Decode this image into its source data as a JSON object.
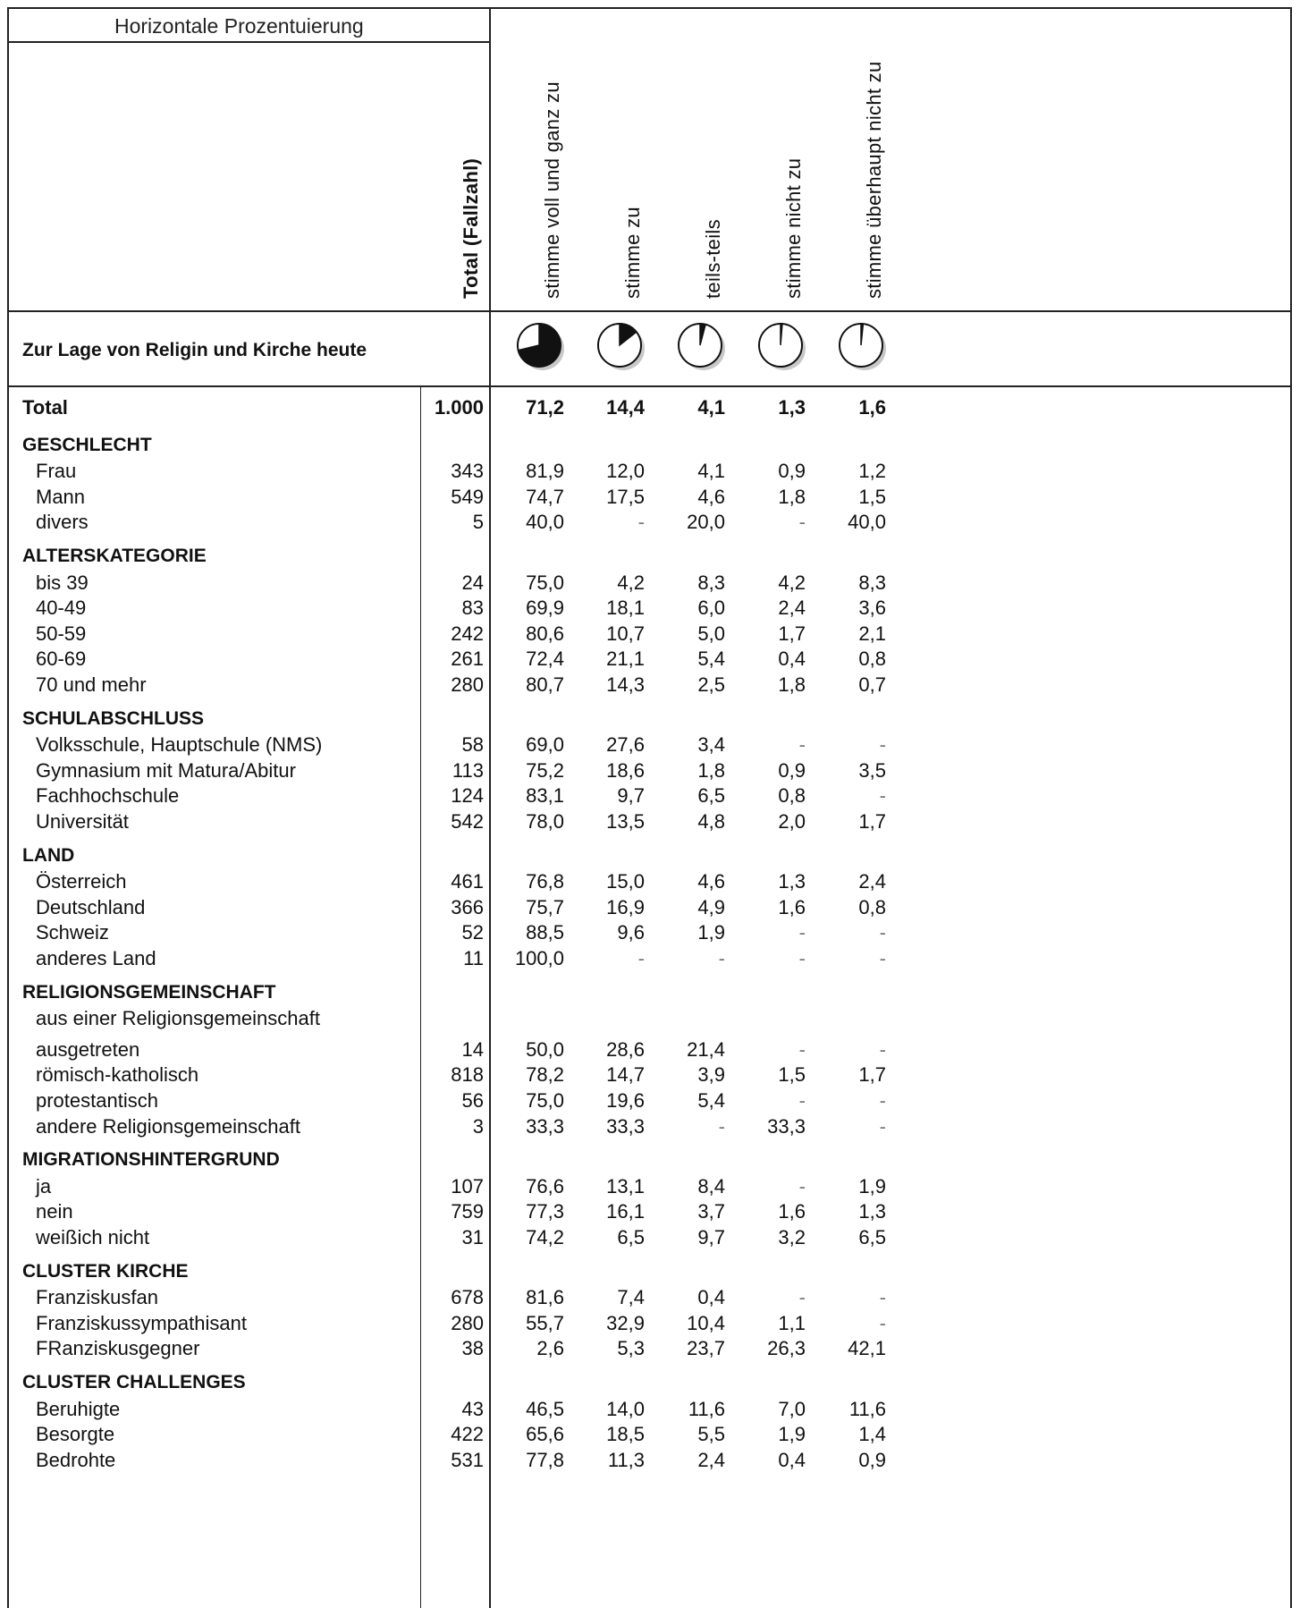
{
  "header": {
    "title": "Horizontale Prozentuierung",
    "columns": [
      "Total (Fallzahl)",
      "stimme voll und ganz zu",
      "stimme zu",
      "teils-teils",
      "stimme nicht zu",
      "stimme überhaupt nicht zu"
    ]
  },
  "question": "Zur Lage von Religin und Kirche heute",
  "pies": [
    71.2,
    14.4,
    4.1,
    1.3,
    1.6
  ],
  "rows": [
    {
      "type": "total",
      "label": "Total",
      "n": "1.000",
      "v": [
        "71,2",
        "14,4",
        "4,1",
        "1,3",
        "1,6"
      ]
    },
    {
      "type": "section",
      "label": "GESCHLECHT"
    },
    {
      "type": "row",
      "label": "Frau",
      "n": "343",
      "v": [
        "81,9",
        "12,0",
        "4,1",
        "0,9",
        "1,2"
      ]
    },
    {
      "type": "row",
      "label": "Mann",
      "n": "549",
      "v": [
        "74,7",
        "17,5",
        "4,6",
        "1,8",
        "1,5"
      ]
    },
    {
      "type": "row",
      "label": "divers",
      "n": "5",
      "v": [
        "40,0",
        "-",
        "20,0",
        "-",
        "40,0"
      ]
    },
    {
      "type": "section",
      "label": "ALTERSKATEGORIE"
    },
    {
      "type": "row",
      "label": "bis 39",
      "n": "24",
      "v": [
        "75,0",
        "4,2",
        "8,3",
        "4,2",
        "8,3"
      ]
    },
    {
      "type": "row",
      "label": "40-49",
      "n": "83",
      "v": [
        "69,9",
        "18,1",
        "6,0",
        "2,4",
        "3,6"
      ]
    },
    {
      "type": "row",
      "label": "50-59",
      "n": "242",
      "v": [
        "80,6",
        "10,7",
        "5,0",
        "1,7",
        "2,1"
      ]
    },
    {
      "type": "row",
      "label": "60-69",
      "n": "261",
      "v": [
        "72,4",
        "21,1",
        "5,4",
        "0,4",
        "0,8"
      ]
    },
    {
      "type": "row",
      "label": "70 und mehr",
      "n": "280",
      "v": [
        "80,7",
        "14,3",
        "2,5",
        "1,8",
        "0,7"
      ]
    },
    {
      "type": "section",
      "label": "SCHULABSCHLUSS"
    },
    {
      "type": "row",
      "label": "Volksschule, Hauptschule (NMS)",
      "n": "58",
      "v": [
        "69,0",
        "27,6",
        "3,4",
        "-",
        "-"
      ]
    },
    {
      "type": "row",
      "label": "Gymnasium mit Matura/Abitur",
      "n": "113",
      "v": [
        "75,2",
        "18,6",
        "1,8",
        "0,9",
        "3,5"
      ]
    },
    {
      "type": "row",
      "label": "Fachhochschule",
      "n": "124",
      "v": [
        "83,1",
        "9,7",
        "6,5",
        "0,8",
        "-"
      ]
    },
    {
      "type": "row",
      "label": "Universität",
      "n": "542",
      "v": [
        "78,0",
        "13,5",
        "4,8",
        "2,0",
        "1,7"
      ]
    },
    {
      "type": "section",
      "label": "LAND"
    },
    {
      "type": "row",
      "label": "Österreich",
      "n": "461",
      "v": [
        "76,8",
        "15,0",
        "4,6",
        "1,3",
        "2,4"
      ]
    },
    {
      "type": "row",
      "label": "Deutschland",
      "n": "366",
      "v": [
        "75,7",
        "16,9",
        "4,9",
        "1,6",
        "0,8"
      ]
    },
    {
      "type": "row",
      "label": "Schweiz",
      "n": "52",
      "v": [
        "88,5",
        "9,6",
        "1,9",
        "-",
        "-"
      ]
    },
    {
      "type": "row",
      "label": "anderes Land",
      "n": "11",
      "v": [
        "100,0",
        "-",
        "-",
        "-",
        "-"
      ]
    },
    {
      "type": "section",
      "label": "RELIGIONSGEMEINSCHAFT"
    },
    {
      "type": "subhead",
      "label": "aus einer Religionsgemeinschaft"
    },
    {
      "type": "row",
      "label": "ausgetreten",
      "n": "14",
      "v": [
        "50,0",
        "28,6",
        "21,4",
        "-",
        "-"
      ]
    },
    {
      "type": "row",
      "label": "römisch-katholisch",
      "n": "818",
      "v": [
        "78,2",
        "14,7",
        "3,9",
        "1,5",
        "1,7"
      ]
    },
    {
      "type": "row",
      "label": "protestantisch",
      "n": "56",
      "v": [
        "75,0",
        "19,6",
        "5,4",
        "-",
        "-"
      ]
    },
    {
      "type": "row",
      "label": "andere Religionsgemeinschaft",
      "n": "3",
      "v": [
        "33,3",
        "33,3",
        "-",
        "33,3",
        "-"
      ]
    },
    {
      "type": "section",
      "label": "MIGRATIONSHINTERGRUND"
    },
    {
      "type": "row",
      "label": "ja",
      "n": "107",
      "v": [
        "76,6",
        "13,1",
        "8,4",
        "-",
        "1,9"
      ]
    },
    {
      "type": "row",
      "label": "nein",
      "n": "759",
      "v": [
        "77,3",
        "16,1",
        "3,7",
        "1,6",
        "1,3"
      ]
    },
    {
      "type": "row",
      "label": "weißich nicht",
      "n": "31",
      "v": [
        "74,2",
        "6,5",
        "9,7",
        "3,2",
        "6,5"
      ]
    },
    {
      "type": "section",
      "label": "CLUSTER KIRCHE"
    },
    {
      "type": "row",
      "label": "Franziskusfan",
      "n": "678",
      "v": [
        "81,6",
        "7,4",
        "0,4",
        "-",
        "-"
      ]
    },
    {
      "type": "row",
      "label": "Franziskussympathisant",
      "n": "280",
      "v": [
        "55,7",
        "32,9",
        "10,4",
        "1,1",
        "-"
      ]
    },
    {
      "type": "row",
      "label": "FRanziskusgegner",
      "n": "38",
      "v": [
        "2,6",
        "5,3",
        "23,7",
        "26,3",
        "42,1"
      ]
    },
    {
      "type": "section",
      "label": "CLUSTER CHALLENGES"
    },
    {
      "type": "row",
      "label": "Beruhigte",
      "n": "43",
      "v": [
        "46,5",
        "14,0",
        "11,6",
        "7,0",
        "11,6"
      ]
    },
    {
      "type": "row",
      "label": "Besorgte",
      "n": "422",
      "v": [
        "65,6",
        "18,5",
        "5,5",
        "1,9",
        "1,4"
      ]
    },
    {
      "type": "row",
      "label": "Bedrohte",
      "n": "531",
      "v": [
        "77,8",
        "11,3",
        "2,4",
        "0,4",
        "0,9"
      ]
    }
  ]
}
